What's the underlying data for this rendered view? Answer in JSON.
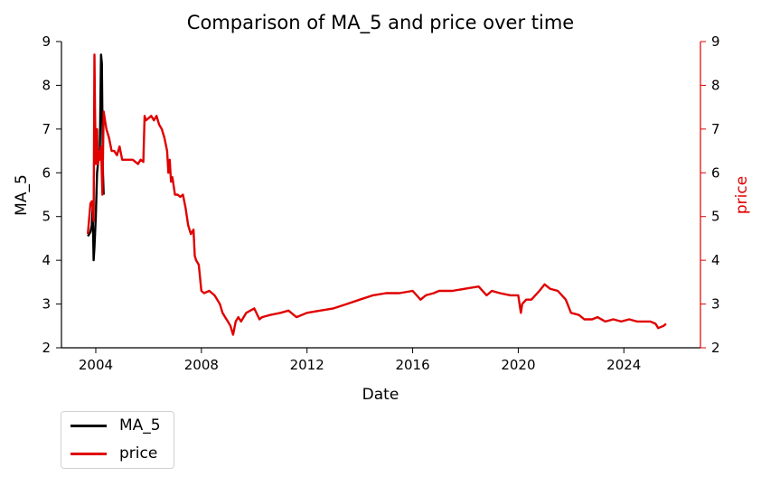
{
  "chart_data": {
    "type": "line",
    "title": "Comparison of MA_5 and price over time",
    "xlabel": "Date",
    "ylabel": "MA_5",
    "ylabel_right": "price",
    "xlim": [
      2002.7,
      2026.9
    ],
    "ylim": [
      2.0,
      9.0
    ],
    "ylim_right": [
      2.0,
      9.0
    ],
    "x_ticks": [
      "2004",
      "2008",
      "2012",
      "2016",
      "2020",
      "2024"
    ],
    "y_ticks": [
      "2",
      "3",
      "4",
      "5",
      "6",
      "7",
      "8",
      "9"
    ],
    "y_ticks_right": [
      "2",
      "3",
      "4",
      "5",
      "6",
      "7",
      "8",
      "9"
    ],
    "grid": false,
    "legend_position": "below-left",
    "series": [
      {
        "name": "MA_5",
        "axis": "left",
        "color": "#000000",
        "x": [
          2003.7,
          2003.75,
          2003.8,
          2003.85,
          2003.88,
          2003.92,
          2003.95,
          2004.0,
          2004.05,
          2004.1,
          2004.15,
          2004.2,
          2004.23,
          2004.27,
          2004.3
        ],
        "y": [
          4.55,
          4.6,
          4.65,
          4.8,
          5.2,
          4.0,
          4.3,
          5.0,
          6.0,
          6.3,
          6.4,
          8.7,
          8.5,
          6.0,
          5.5
        ]
      },
      {
        "name": "price",
        "axis": "right",
        "color": "#e00000",
        "x": [
          2003.7,
          2003.8,
          2003.85,
          2003.88,
          2003.92,
          2003.95,
          2003.97,
          2004.0,
          2004.05,
          2004.08,
          2004.12,
          2004.15,
          2004.2,
          2004.25,
          2004.3,
          2004.35,
          2004.4,
          2004.5,
          2004.6,
          2004.7,
          2004.8,
          2004.9,
          2005.0,
          2005.2,
          2005.4,
          2005.6,
          2005.7,
          2005.8,
          2005.85,
          2005.9,
          2006.0,
          2006.1,
          2006.2,
          2006.3,
          2006.4,
          2006.5,
          2006.6,
          2006.7,
          2006.75,
          2006.8,
          2006.85,
          2006.9,
          2007.0,
          2007.1,
          2007.2,
          2007.3,
          2007.4,
          2007.5,
          2007.6,
          2007.7,
          2007.75,
          2007.8,
          2007.9,
          2008.0,
          2008.1,
          2008.3,
          2008.5,
          2008.7,
          2008.8,
          2008.9,
          2009.0,
          2009.1,
          2009.15,
          2009.2,
          2009.3,
          2009.4,
          2009.5,
          2009.7,
          2010.0,
          2010.2,
          2010.3,
          2010.6,
          2011.0,
          2011.3,
          2011.6,
          2012.0,
          2012.5,
          2013.0,
          2013.5,
          2014.0,
          2014.5,
          2015.0,
          2015.5,
          2016.0,
          2016.3,
          2016.5,
          2016.8,
          2017.0,
          2017.5,
          2018.0,
          2018.5,
          2018.8,
          2019.0,
          2019.3,
          2019.7,
          2020.0,
          2020.1,
          2020.15,
          2020.3,
          2020.5,
          2020.8,
          2021.0,
          2021.2,
          2021.5,
          2021.8,
          2022.0,
          2022.3,
          2022.5,
          2022.8,
          2023.0,
          2023.3,
          2023.6,
          2023.9,
          2024.2,
          2024.5,
          2024.8,
          2025.0,
          2025.2,
          2025.3,
          2025.5,
          2025.6
        ],
        "y": [
          4.6,
          5.3,
          5.35,
          5.2,
          4.9,
          8.7,
          7.5,
          6.2,
          7.0,
          6.2,
          6.5,
          6.3,
          6.6,
          5.5,
          7.4,
          7.2,
          7.0,
          6.8,
          6.5,
          6.5,
          6.4,
          6.6,
          6.3,
          6.3,
          6.3,
          6.2,
          6.3,
          6.25,
          7.3,
          7.2,
          7.25,
          7.3,
          7.2,
          7.3,
          7.1,
          7.0,
          6.8,
          6.5,
          6.0,
          6.3,
          5.8,
          5.9,
          5.5,
          5.5,
          5.45,
          5.5,
          5.2,
          4.8,
          4.6,
          4.7,
          4.1,
          4.0,
          3.9,
          3.3,
          3.25,
          3.3,
          3.2,
          3.0,
          2.8,
          2.7,
          2.6,
          2.5,
          2.4,
          2.3,
          2.6,
          2.7,
          2.6,
          2.8,
          2.9,
          2.65,
          2.7,
          2.75,
          2.8,
          2.85,
          2.7,
          2.8,
          2.85,
          2.9,
          3.0,
          3.1,
          3.2,
          3.25,
          3.25,
          3.3,
          3.1,
          3.2,
          3.25,
          3.3,
          3.3,
          3.35,
          3.4,
          3.2,
          3.3,
          3.25,
          3.2,
          3.2,
          2.8,
          3.0,
          3.1,
          3.1,
          3.3,
          3.45,
          3.35,
          3.3,
          3.1,
          2.8,
          2.75,
          2.65,
          2.65,
          2.7,
          2.6,
          2.65,
          2.6,
          2.65,
          2.6,
          2.6,
          2.6,
          2.55,
          2.45,
          2.5,
          2.55
        ]
      }
    ]
  }
}
